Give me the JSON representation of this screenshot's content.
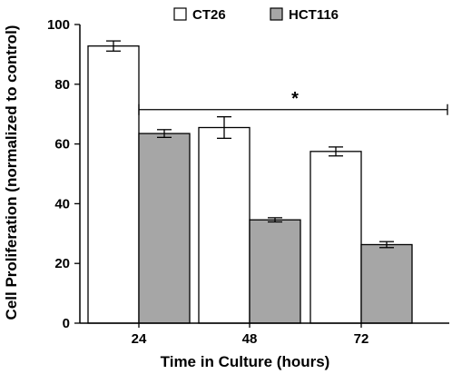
{
  "chart_data": {
    "type": "bar",
    "categories": [
      "24",
      "48",
      "72"
    ],
    "series": [
      {
        "name": "CT26",
        "values": [
          92.8,
          65.5,
          57.5
        ],
        "errors": [
          1.7,
          3.6,
          1.5
        ],
        "color": "#ffffff"
      },
      {
        "name": "HCT116",
        "values": [
          63.5,
          34.6,
          26.3
        ],
        "errors": [
          1.3,
          0.7,
          1.0
        ],
        "color": "#a6a6a6"
      }
    ],
    "xlabel": "Time in Culture (hours)",
    "ylabel": "Cell Proliferation (normalized to control)",
    "ylim": [
      0,
      100
    ],
    "yticks": [
      0,
      20,
      40,
      60,
      80,
      100
    ],
    "legend_position": "top",
    "grid": false,
    "annotation": {
      "text": "*",
      "y": 71.5,
      "from_category": "24",
      "to_category": "72"
    }
  }
}
